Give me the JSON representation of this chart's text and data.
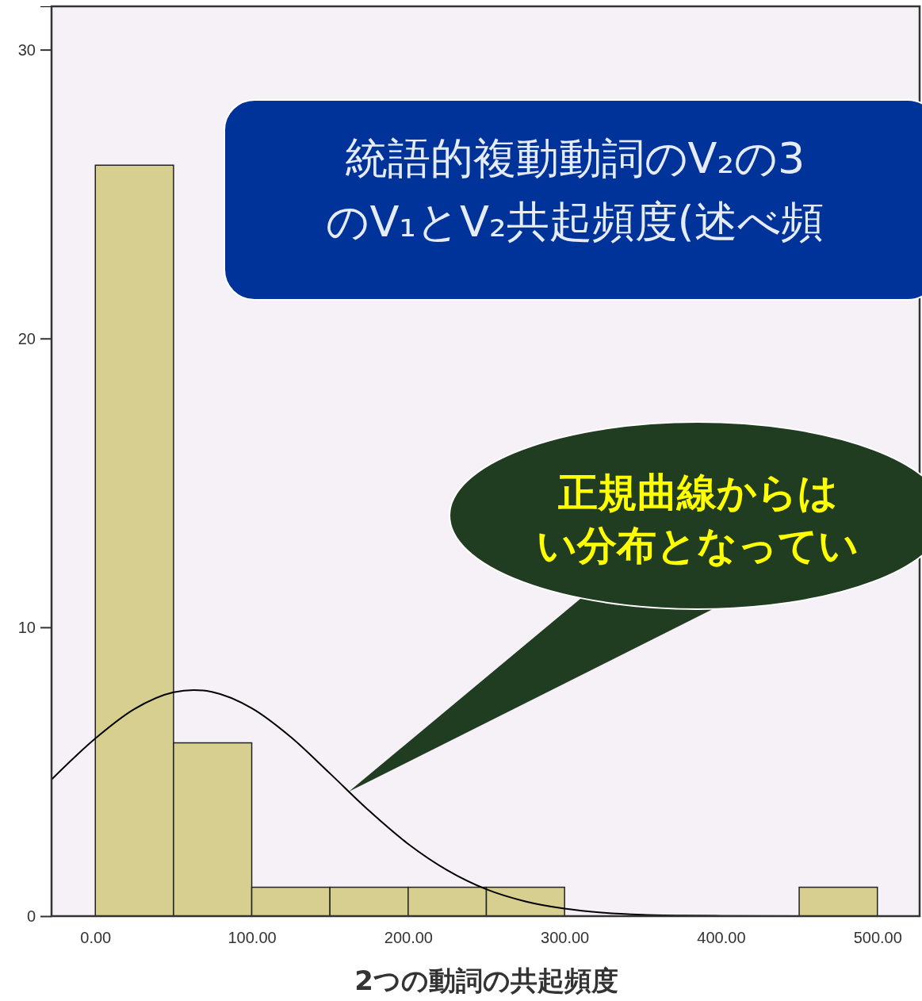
{
  "chart_data": {
    "type": "histogram",
    "xlabel": "2つの動詞の共起頻度",
    "bins": [
      0,
      50,
      100,
      150,
      200,
      250,
      300,
      350,
      400,
      450,
      500
    ],
    "values": [
      26,
      6,
      1,
      1,
      1,
      1,
      0,
      0,
      0,
      1
    ],
    "color": "#d6cf90",
    "series": [
      {
        "type": "line",
        "color": "#000000",
        "x": [
          -28,
          0,
          25,
          50,
          63,
          75,
          100,
          125,
          150,
          175,
          200,
          225,
          250,
          275,
          300,
          325,
          350,
          375,
          400,
          450,
          527
        ],
        "values": [
          4.73,
          6.15,
          7.17,
          7.75,
          7.83,
          7.76,
          7.2,
          6.2,
          4.94,
          3.65,
          2.5,
          1.59,
          0.93,
          0.51,
          0.26,
          0.12,
          0.05,
          0.02,
          0.01,
          0,
          0
        ]
      }
    ],
    "xlim": [
      -28,
      527
    ],
    "ylim": [
      0,
      31.5
    ],
    "xticks": [
      {
        "value": 0,
        "label": "0.00"
      },
      {
        "value": 100,
        "label": "100.00"
      },
      {
        "value": 200,
        "label": "200.00"
      },
      {
        "value": 300,
        "label": "300.00"
      },
      {
        "value": 400,
        "label": "400.00"
      },
      {
        "value": 500,
        "label": "500.00"
      }
    ],
    "yticks": [
      0,
      10,
      20,
      30
    ],
    "annotations": [
      "統語的複動動詞のV₂の3",
      "のV₁とV₂共起頻度(述べ頻",
      "正規曲線からは",
      "い分布となってい"
    ]
  }
}
